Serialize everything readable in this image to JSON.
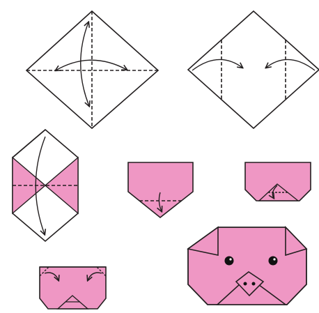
{
  "colors": {
    "paper": "#ffffff",
    "pink": "#ef97c4",
    "line": "#231f20",
    "eye": "#111111"
  },
  "steps": [
    {
      "name": "step-1",
      "description_icon": "fold-in-half-both-ways-and-unfold"
    },
    {
      "name": "step-2",
      "description_icon": "fold-side-corners-to-creases"
    },
    {
      "name": "step-3",
      "description_icon": "fold-top-down-to-bottom"
    },
    {
      "name": "step-4",
      "description_icon": "fold-bottom-tip-up"
    },
    {
      "name": "step-5",
      "description_icon": "fold-tip-down-for-snout"
    },
    {
      "name": "step-6",
      "description_icon": "fold-ear-corners-down"
    },
    {
      "name": "step-7",
      "description_icon": "finished-pig-face"
    }
  ]
}
